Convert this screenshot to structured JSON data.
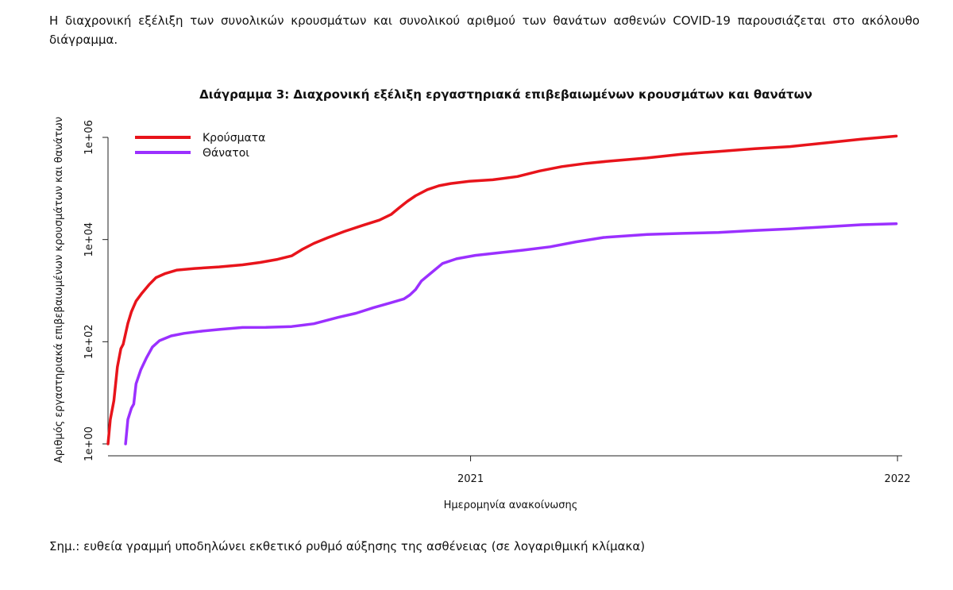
{
  "page": {
    "intro_text": "Η διαχρονική εξέλιξη των συνολικών κρουσμάτων και συνολικού αριθμού των θανάτων ασθενών COVID-19 παρουσιάζεται στο ακόλουθο διάγραμμα.",
    "note_text": "Σημ.: ευθεία γραμμή υποδηλώνει εκθετικό ρυθμό αύξησης της ασθένειας (σε λογαριθμική κλίμακα)"
  },
  "chart_data": {
    "type": "line",
    "title": "Διάγραμμα 3: Διαχρονική εξέλιξη εργαστηριακά επιβεβαιωμένων κρουσμάτων και θανάτων",
    "xlabel": "Ημερομηνία ανακοίνωσης",
    "ylabel": "Αριθμός εργαστηριακά επιβεβαιωμένων κρουσμάτων και θανάτων",
    "y_scale": "log10",
    "ylim": [
      1,
      1000000
    ],
    "xlim": [
      "2020-02-26",
      "2022-01-05"
    ],
    "x_ticks": [
      {
        "date": "2021-01-01",
        "label": "2021"
      },
      {
        "date": "2022-01-01",
        "label": "2022"
      }
    ],
    "y_ticks": [
      {
        "value": 1,
        "label": "1e+00"
      },
      {
        "value": 100,
        "label": "1e+02"
      },
      {
        "value": 10000,
        "label": "1e+04"
      },
      {
        "value": 1000000,
        "label": "1e+06"
      }
    ],
    "grid": false,
    "legend_position": "top-left",
    "series": [
      {
        "name": "Κρούσματα",
        "color": "#e8141b",
        "points": [
          [
            "2020-02-26",
            1
          ],
          [
            "2020-02-28",
            3
          ],
          [
            "2020-03-02",
            7
          ],
          [
            "2020-03-05",
            32
          ],
          [
            "2020-03-08",
            73
          ],
          [
            "2020-03-10",
            89
          ],
          [
            "2020-03-14",
            228
          ],
          [
            "2020-03-17",
            387
          ],
          [
            "2020-03-21",
            624
          ],
          [
            "2020-03-26",
            892
          ],
          [
            "2020-04-01",
            1300
          ],
          [
            "2020-04-07",
            1800
          ],
          [
            "2020-04-15",
            2170
          ],
          [
            "2020-04-25",
            2530
          ],
          [
            "2020-05-10",
            2710
          ],
          [
            "2020-05-31",
            2917
          ],
          [
            "2020-06-20",
            3200
          ],
          [
            "2020-07-05",
            3560
          ],
          [
            "2020-07-20",
            4100
          ],
          [
            "2020-08-01",
            4800
          ],
          [
            "2020-08-10",
            6400
          ],
          [
            "2020-08-20",
            8400
          ],
          [
            "2020-09-01",
            10900
          ],
          [
            "2020-09-15",
            14400
          ],
          [
            "2020-10-01",
            19000
          ],
          [
            "2020-10-15",
            24000
          ],
          [
            "2020-10-25",
            31000
          ],
          [
            "2020-11-01",
            42000
          ],
          [
            "2020-11-08",
            56000
          ],
          [
            "2020-11-15",
            72000
          ],
          [
            "2020-11-25",
            95000
          ],
          [
            "2020-12-05",
            113000
          ],
          [
            "2020-12-15",
            125000
          ],
          [
            "2020-12-31",
            138000
          ],
          [
            "2021-01-20",
            148000
          ],
          [
            "2021-02-10",
            171000
          ],
          [
            "2021-03-01",
            220000
          ],
          [
            "2021-03-20",
            268000
          ],
          [
            "2021-04-10",
            310000
          ],
          [
            "2021-05-01",
            345000
          ],
          [
            "2021-06-01",
            396000
          ],
          [
            "2021-07-01",
            470000
          ],
          [
            "2021-08-01",
            530000
          ],
          [
            "2021-09-01",
            600000
          ],
          [
            "2021-10-01",
            660000
          ],
          [
            "2021-11-01",
            780000
          ],
          [
            "2021-12-01",
            920000
          ],
          [
            "2021-12-31",
            1060000
          ]
        ]
      },
      {
        "name": "Θάνατοι",
        "color": "#9b30ff",
        "points": [
          [
            "2020-03-12",
            1
          ],
          [
            "2020-03-14",
            3
          ],
          [
            "2020-03-17",
            5
          ],
          [
            "2020-03-19",
            6
          ],
          [
            "2020-03-21",
            15
          ],
          [
            "2020-03-25",
            28
          ],
          [
            "2020-03-30",
            49
          ],
          [
            "2020-04-04",
            79
          ],
          [
            "2020-04-10",
            105
          ],
          [
            "2020-04-20",
            130
          ],
          [
            "2020-05-01",
            146
          ],
          [
            "2020-05-15",
            160
          ],
          [
            "2020-06-01",
            175
          ],
          [
            "2020-06-20",
            190
          ],
          [
            "2020-07-10",
            191
          ],
          [
            "2020-08-01",
            198
          ],
          [
            "2020-08-20",
            225
          ],
          [
            "2020-09-10",
            300
          ],
          [
            "2020-09-25",
            360
          ],
          [
            "2020-10-10",
            465
          ],
          [
            "2020-10-25",
            580
          ],
          [
            "2020-11-05",
            690
          ],
          [
            "2020-11-10",
            820
          ],
          [
            "2020-11-15",
            1050
          ],
          [
            "2020-11-20",
            1550
          ],
          [
            "2020-11-28",
            2200
          ],
          [
            "2020-12-08",
            3400
          ],
          [
            "2020-12-20",
            4200
          ],
          [
            "2021-01-05",
            4900
          ],
          [
            "2021-01-25",
            5500
          ],
          [
            "2021-02-15",
            6200
          ],
          [
            "2021-03-10",
            7200
          ],
          [
            "2021-04-01",
            9000
          ],
          [
            "2021-04-25",
            11000
          ],
          [
            "2021-06-01",
            12600
          ],
          [
            "2021-07-01",
            13200
          ],
          [
            "2021-08-01",
            13800
          ],
          [
            "2021-09-01",
            15000
          ],
          [
            "2021-10-01",
            16200
          ],
          [
            "2021-11-01",
            17800
          ],
          [
            "2021-12-01",
            19500
          ],
          [
            "2021-12-31",
            20400
          ]
        ]
      }
    ]
  }
}
